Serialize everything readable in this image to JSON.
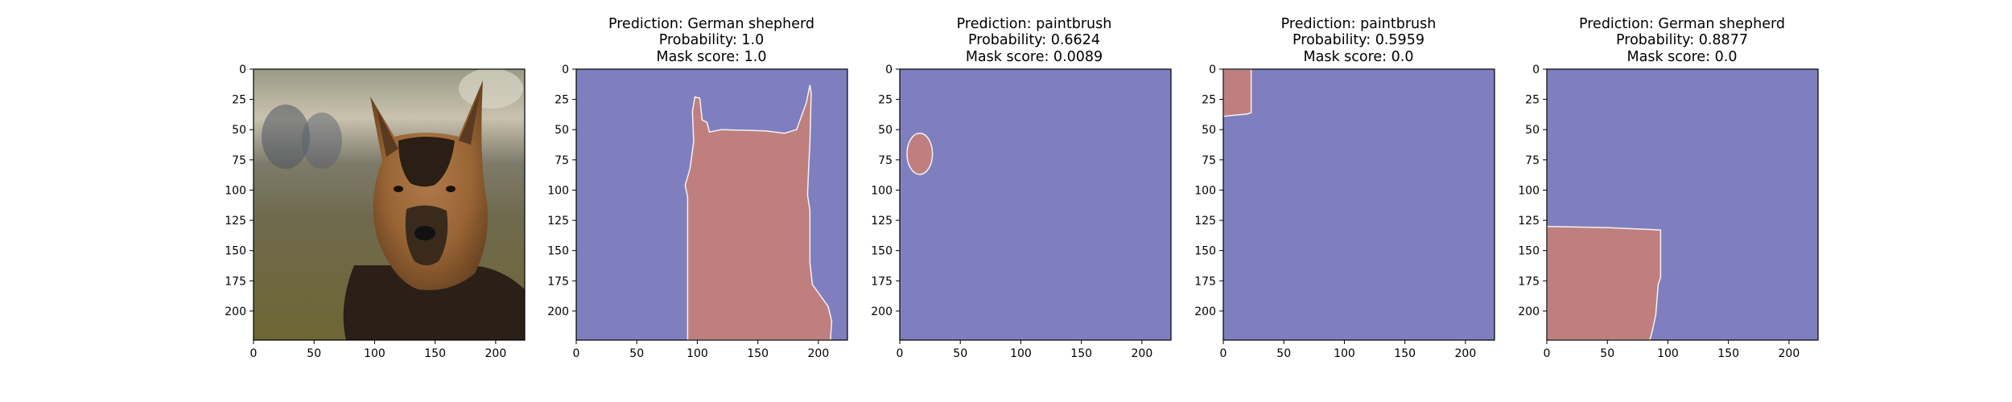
{
  "chart_data": [
    {
      "type": "image",
      "title": "",
      "content": "photo of a German shepherd dog",
      "xlim": [
        0,
        224
      ],
      "ylim": [
        224,
        0
      ],
      "xticks": [
        0,
        50,
        100,
        150,
        200
      ],
      "yticks": [
        0,
        25,
        50,
        75,
        100,
        125,
        150,
        175,
        200
      ]
    },
    {
      "type": "heatmap",
      "title_lines": [
        "Prediction: German shepherd",
        "Probability: 1.0",
        "Mask score: 1.0"
      ],
      "xlim": [
        0,
        224
      ],
      "ylim": [
        224,
        0
      ],
      "xticks": [
        0,
        50,
        100,
        150,
        200
      ],
      "yticks": [
        0,
        25,
        50,
        75,
        100,
        125,
        150,
        175,
        200
      ],
      "mask_region_polygon": [
        [
          98,
          23
        ],
        [
          102,
          24
        ],
        [
          104,
          42
        ],
        [
          108,
          44
        ],
        [
          110,
          52
        ],
        [
          120,
          50
        ],
        [
          156,
          51
        ],
        [
          172,
          53
        ],
        [
          182,
          50
        ],
        [
          190,
          28
        ],
        [
          193,
          13
        ],
        [
          194,
          20
        ],
        [
          193,
          60
        ],
        [
          192,
          80
        ],
        [
          191,
          104
        ],
        [
          193,
          117
        ],
        [
          193,
          160
        ],
        [
          195,
          178
        ],
        [
          208,
          196
        ],
        [
          211,
          208
        ],
        [
          210,
          224
        ],
        [
          92,
          224
        ],
        [
          92,
          106
        ],
        [
          90,
          96
        ],
        [
          94,
          82
        ],
        [
          97,
          60
        ],
        [
          96,
          35
        ]
      ],
      "colors": {
        "background": "#7f7fbf",
        "mask": "#bf7f7f",
        "edge": "#f2f2f2"
      }
    },
    {
      "type": "heatmap",
      "title_lines": [
        "Prediction: paintbrush",
        "Probability: 0.6624",
        "Mask score: 0.0089"
      ],
      "xlim": [
        0,
        224
      ],
      "ylim": [
        224,
        0
      ],
      "xticks": [
        0,
        50,
        100,
        150,
        200
      ],
      "yticks": [
        0,
        25,
        50,
        75,
        100,
        125,
        150,
        175,
        200
      ],
      "mask_ellipse": {
        "cx": 16.5,
        "cy": 70,
        "rx": 10.5,
        "ry": 17
      },
      "colors": {
        "background": "#7f7fbf",
        "mask": "#bf7f7f",
        "edge": "#f2f2f2"
      }
    },
    {
      "type": "heatmap",
      "title_lines": [
        "Prediction: paintbrush",
        "Probability: 0.5959",
        "Mask score: 0.0"
      ],
      "xlim": [
        0,
        224
      ],
      "ylim": [
        224,
        0
      ],
      "xticks": [
        0,
        50,
        100,
        150,
        200
      ],
      "yticks": [
        0,
        25,
        50,
        75,
        100,
        125,
        150,
        175,
        200
      ],
      "mask_region_polygon": [
        [
          0,
          0
        ],
        [
          23,
          0
        ],
        [
          23,
          36
        ],
        [
          20,
          37
        ],
        [
          0,
          39
        ]
      ],
      "colors": {
        "background": "#7f7fbf",
        "mask": "#bf7f7f",
        "edge": "#f2f2f2"
      }
    },
    {
      "type": "heatmap",
      "title_lines": [
        "Prediction: German shepherd",
        "Probability: 0.8877",
        "Mask score: 0.0"
      ],
      "xlim": [
        0,
        224
      ],
      "ylim": [
        224,
        0
      ],
      "xticks": [
        0,
        50,
        100,
        150,
        200
      ],
      "yticks": [
        0,
        25,
        50,
        75,
        100,
        125,
        150,
        175,
        200
      ],
      "mask_region_polygon": [
        [
          0,
          130
        ],
        [
          50,
          131
        ],
        [
          94,
          133
        ],
        [
          94,
          172
        ],
        [
          92,
          178
        ],
        [
          90,
          203
        ],
        [
          87,
          217
        ],
        [
          85,
          224
        ],
        [
          0,
          224
        ]
      ],
      "colors": {
        "background": "#7f7fbf",
        "mask": "#bf7f7f",
        "edge": "#f2f2f2"
      }
    }
  ]
}
